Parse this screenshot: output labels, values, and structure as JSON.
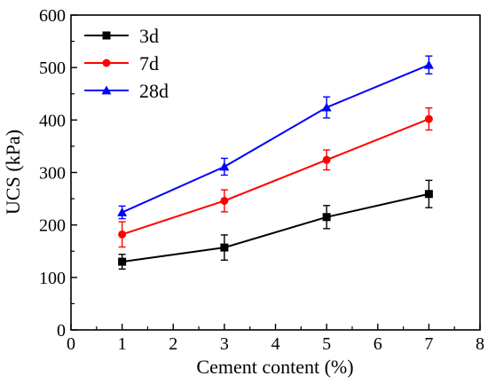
{
  "chart_data": {
    "type": "line",
    "xlabel": "Cement content (%)",
    "ylabel": "UCS (kPa)",
    "xlim": [
      0,
      8
    ],
    "ylim": [
      0,
      600
    ],
    "xticks": [
      "0",
      "1",
      "2",
      "3",
      "4",
      "5",
      "6",
      "7",
      "8"
    ],
    "yticks": [
      "0",
      "100",
      "200",
      "300",
      "400",
      "500",
      "600"
    ],
    "x": [
      1,
      3,
      5,
      7
    ],
    "grid": false,
    "legend_position": "top-left",
    "series": [
      {
        "name": "3d",
        "color": "#000000",
        "marker": "square",
        "values": [
          130,
          157,
          215,
          259
        ],
        "errors": [
          14,
          24,
          22,
          26
        ]
      },
      {
        "name": "7d",
        "color": "#ff0000",
        "marker": "circle",
        "values": [
          182,
          246,
          324,
          402
        ],
        "errors": [
          24,
          21,
          19,
          21
        ]
      },
      {
        "name": "28d",
        "color": "#0000ff",
        "marker": "triangle",
        "values": [
          224,
          311,
          424,
          505
        ],
        "errors": [
          12,
          16,
          20,
          17
        ]
      }
    ]
  }
}
